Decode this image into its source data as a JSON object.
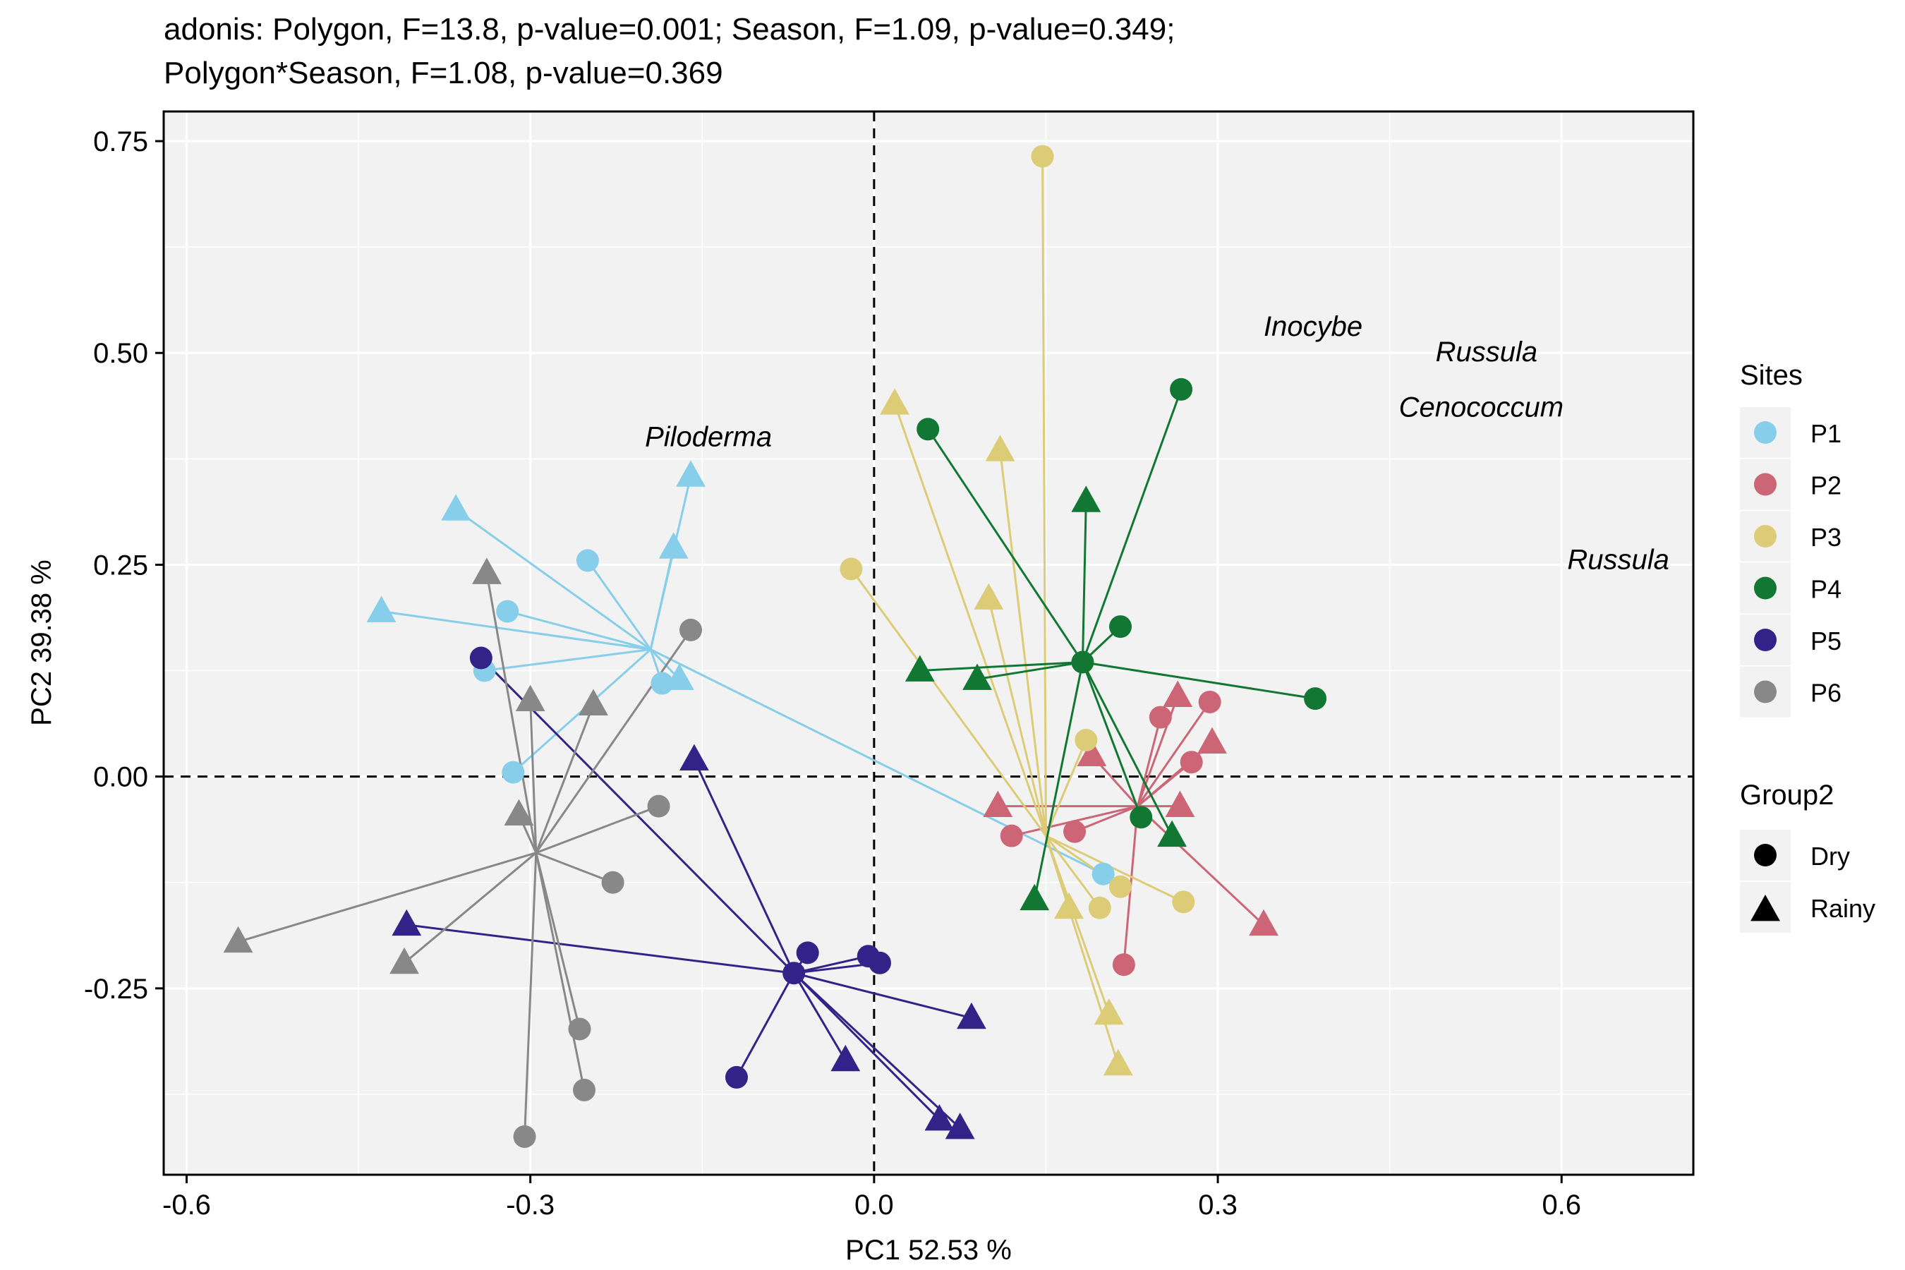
{
  "chart_data": {
    "type": "scatter",
    "title_lines": [
      "adonis: Polygon, F=13.8, p-value=0.001; Season, F=1.09, p-value=0.349;",
      "Polygon*Season, F=1.08, p-value=0.369"
    ],
    "xlabel": "PC1 52.53 %",
    "ylabel": "PC2 39.38 %",
    "xlim": [
      -0.62,
      0.715
    ],
    "ylim": [
      -0.47,
      0.785
    ],
    "xticks": [
      -0.6,
      -0.3,
      0.0,
      0.3,
      0.6
    ],
    "xtick_labels": [
      "-0.6",
      "-0.3",
      "0.0",
      "0.3",
      "0.6"
    ],
    "yticks": [
      -0.25,
      0.0,
      0.25,
      0.5,
      0.75
    ],
    "ytick_labels": [
      "-0.25",
      "0.00",
      "0.25",
      "0.50",
      "0.75"
    ],
    "grid": true,
    "reference_lines": {
      "x": 0,
      "y": 0,
      "style": "dashed"
    },
    "legend_placement": "right",
    "legend_sites_title": "Sites",
    "legend_group_title": "Group2",
    "shapes": [
      {
        "label": "Dry",
        "shape": "circle"
      },
      {
        "label": "Rainy",
        "shape": "triangle"
      }
    ],
    "series": [
      {
        "name": "P1",
        "color": "#87CEEB",
        "centroid": [
          -0.195,
          0.15
        ],
        "points": [
          {
            "x": -0.25,
            "y": 0.255,
            "s": "circle"
          },
          {
            "x": -0.32,
            "y": 0.195,
            "s": "circle"
          },
          {
            "x": -0.34,
            "y": 0.125,
            "s": "circle"
          },
          {
            "x": -0.315,
            "y": 0.005,
            "s": "circle"
          },
          {
            "x": -0.185,
            "y": 0.11,
            "s": "circle"
          },
          {
            "x": 0.2,
            "y": -0.115,
            "s": "circle"
          },
          {
            "x": -0.365,
            "y": 0.315,
            "s": "triangle"
          },
          {
            "x": -0.43,
            "y": 0.195,
            "s": "triangle"
          },
          {
            "x": -0.16,
            "y": 0.355,
            "s": "triangle"
          },
          {
            "x": -0.175,
            "y": 0.27,
            "s": "triangle"
          },
          {
            "x": -0.17,
            "y": 0.115,
            "s": "triangle"
          }
        ]
      },
      {
        "name": "P2",
        "color": "#CC6677",
        "centroid": [
          0.23,
          -0.035
        ],
        "points": [
          {
            "x": 0.25,
            "y": 0.07,
            "s": "circle"
          },
          {
            "x": 0.293,
            "y": 0.088,
            "s": "circle"
          },
          {
            "x": 0.277,
            "y": 0.017,
            "s": "circle"
          },
          {
            "x": 0.12,
            "y": -0.07,
            "s": "circle"
          },
          {
            "x": 0.175,
            "y": -0.065,
            "s": "circle"
          },
          {
            "x": 0.218,
            "y": -0.222,
            "s": "circle"
          },
          {
            "x": 0.265,
            "y": 0.095,
            "s": "triangle"
          },
          {
            "x": 0.295,
            "y": 0.04,
            "s": "triangle"
          },
          {
            "x": 0.19,
            "y": 0.025,
            "s": "triangle"
          },
          {
            "x": 0.108,
            "y": -0.035,
            "s": "triangle"
          },
          {
            "x": 0.267,
            "y": -0.035,
            "s": "triangle"
          },
          {
            "x": 0.34,
            "y": -0.175,
            "s": "triangle"
          }
        ]
      },
      {
        "name": "P3",
        "color": "#DDCC77",
        "centroid": [
          0.15,
          -0.07
        ],
        "points": [
          {
            "x": 0.147,
            "y": 0.732,
            "s": "circle"
          },
          {
            "x": -0.02,
            "y": 0.245,
            "s": "circle"
          },
          {
            "x": 0.185,
            "y": 0.043,
            "s": "circle"
          },
          {
            "x": 0.215,
            "y": -0.13,
            "s": "circle"
          },
          {
            "x": 0.27,
            "y": -0.148,
            "s": "circle"
          },
          {
            "x": 0.197,
            "y": -0.155,
            "s": "circle"
          },
          {
            "x": 0.018,
            "y": 0.44,
            "s": "triangle"
          },
          {
            "x": 0.11,
            "y": 0.385,
            "s": "triangle"
          },
          {
            "x": 0.1,
            "y": 0.21,
            "s": "triangle"
          },
          {
            "x": 0.17,
            "y": -0.155,
            "s": "triangle"
          },
          {
            "x": 0.205,
            "y": -0.28,
            "s": "triangle"
          },
          {
            "x": 0.213,
            "y": -0.34,
            "s": "triangle"
          }
        ]
      },
      {
        "name": "P4",
        "color": "#117733",
        "centroid": [
          0.182,
          0.135
        ],
        "points": [
          {
            "x": 0.268,
            "y": 0.457,
            "s": "circle"
          },
          {
            "x": 0.047,
            "y": 0.41,
            "s": "circle"
          },
          {
            "x": 0.215,
            "y": 0.177,
            "s": "circle"
          },
          {
            "x": 0.385,
            "y": 0.092,
            "s": "circle"
          },
          {
            "x": 0.233,
            "y": -0.048,
            "s": "circle"
          },
          {
            "x": 0.182,
            "y": 0.135,
            "s": "circle"
          },
          {
            "x": 0.185,
            "y": 0.325,
            "s": "triangle"
          },
          {
            "x": 0.04,
            "y": 0.125,
            "s": "triangle"
          },
          {
            "x": 0.09,
            "y": 0.115,
            "s": "triangle"
          },
          {
            "x": 0.26,
            "y": -0.07,
            "s": "triangle"
          },
          {
            "x": 0.14,
            "y": -0.145,
            "s": "triangle"
          }
        ]
      },
      {
        "name": "P5",
        "color": "#332288",
        "centroid": [
          -0.07,
          -0.232
        ],
        "points": [
          {
            "x": -0.343,
            "y": 0.14,
            "s": "circle"
          },
          {
            "x": -0.058,
            "y": -0.208,
            "s": "circle"
          },
          {
            "x": -0.005,
            "y": -0.212,
            "s": "circle"
          },
          {
            "x": 0.005,
            "y": -0.22,
            "s": "circle"
          },
          {
            "x": -0.07,
            "y": -0.232,
            "s": "circle"
          },
          {
            "x": -0.12,
            "y": -0.355,
            "s": "circle"
          },
          {
            "x": -0.408,
            "y": -0.175,
            "s": "triangle"
          },
          {
            "x": -0.157,
            "y": 0.02,
            "s": "triangle"
          },
          {
            "x": 0.085,
            "y": -0.285,
            "s": "triangle"
          },
          {
            "x": -0.025,
            "y": -0.335,
            "s": "triangle"
          },
          {
            "x": 0.057,
            "y": -0.405,
            "s": "triangle"
          },
          {
            "x": 0.075,
            "y": -0.415,
            "s": "triangle"
          }
        ]
      },
      {
        "name": "P6",
        "color": "#888888",
        "centroid": [
          -0.295,
          -0.09
        ],
        "points": [
          {
            "x": -0.16,
            "y": 0.173,
            "s": "circle"
          },
          {
            "x": -0.188,
            "y": -0.035,
            "s": "circle"
          },
          {
            "x": -0.228,
            "y": -0.125,
            "s": "circle"
          },
          {
            "x": -0.257,
            "y": -0.298,
            "s": "circle"
          },
          {
            "x": -0.253,
            "y": -0.37,
            "s": "circle"
          },
          {
            "x": -0.305,
            "y": -0.425,
            "s": "circle"
          },
          {
            "x": -0.338,
            "y": 0.24,
            "s": "triangle"
          },
          {
            "x": -0.3,
            "y": 0.09,
            "s": "triangle"
          },
          {
            "x": -0.245,
            "y": 0.085,
            "s": "triangle"
          },
          {
            "x": -0.31,
            "y": -0.045,
            "s": "triangle"
          },
          {
            "x": -0.41,
            "y": -0.22,
            "s": "triangle"
          },
          {
            "x": -0.555,
            "y": -0.195,
            "s": "triangle"
          }
        ]
      }
    ],
    "annotations": [
      {
        "text": "Piloderma",
        "x": -0.2,
        "y": 0.39
      },
      {
        "text": "Inocybe",
        "x": 0.34,
        "y": 0.52
      },
      {
        "text": "Russula",
        "x": 0.49,
        "y": 0.49
      },
      {
        "text": "Cenococcum",
        "x": 0.458,
        "y": 0.425
      },
      {
        "text": "Russula",
        "x": 0.605,
        "y": 0.245
      }
    ]
  }
}
